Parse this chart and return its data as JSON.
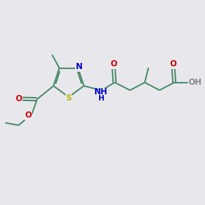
{
  "bg_color": "#e8e8ec",
  "bond_color": "#4a8a6a",
  "bond_width": 1.5,
  "s_color": "#b8b800",
  "n_color": "#0000cc",
  "o_color": "#cc0000",
  "h_color": "#888888",
  "font_size": 8.5,
  "fig_size": [
    3.0,
    3.0
  ],
  "dpi": 100,
  "xlim": [
    0,
    10
  ],
  "ylim": [
    0,
    10
  ]
}
